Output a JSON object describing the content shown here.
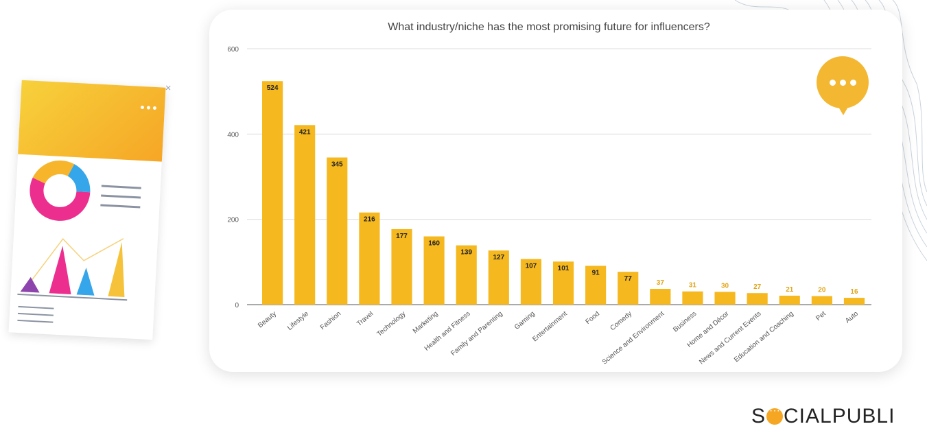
{
  "chart_data": {
    "type": "bar",
    "title": "What industry/niche has the most promising future for influencers?",
    "xlabel": "",
    "ylabel": "",
    "ylim": [
      0,
      600
    ],
    "yticks": [
      "0",
      "200",
      "400",
      "600"
    ],
    "categories": [
      "Beauty",
      "Lifestyle",
      "Fashion",
      "Travel",
      "Technology",
      "Marketing",
      "Health and Fitness",
      "Family and Parenting",
      "Gaming",
      "Entertainment",
      "Food",
      "Comedy",
      "Science and Environment",
      "Business",
      "Home and Décor",
      "News and Current Events",
      "Education and Coaching",
      "Pet",
      "Auto"
    ],
    "values": [
      524,
      421,
      345,
      216,
      177,
      160,
      139,
      127,
      107,
      101,
      91,
      77,
      37,
      31,
      30,
      27,
      21,
      20,
      16
    ],
    "bar_color": "#f5b81f",
    "grid": true
  },
  "brand": {
    "name_left": "S",
    "name_right": "CIALPUBLI",
    "accent": "#f5a623"
  },
  "icons": {
    "chat": "chat-bubble-icon",
    "close": "close-icon"
  },
  "close_glyph": "×"
}
